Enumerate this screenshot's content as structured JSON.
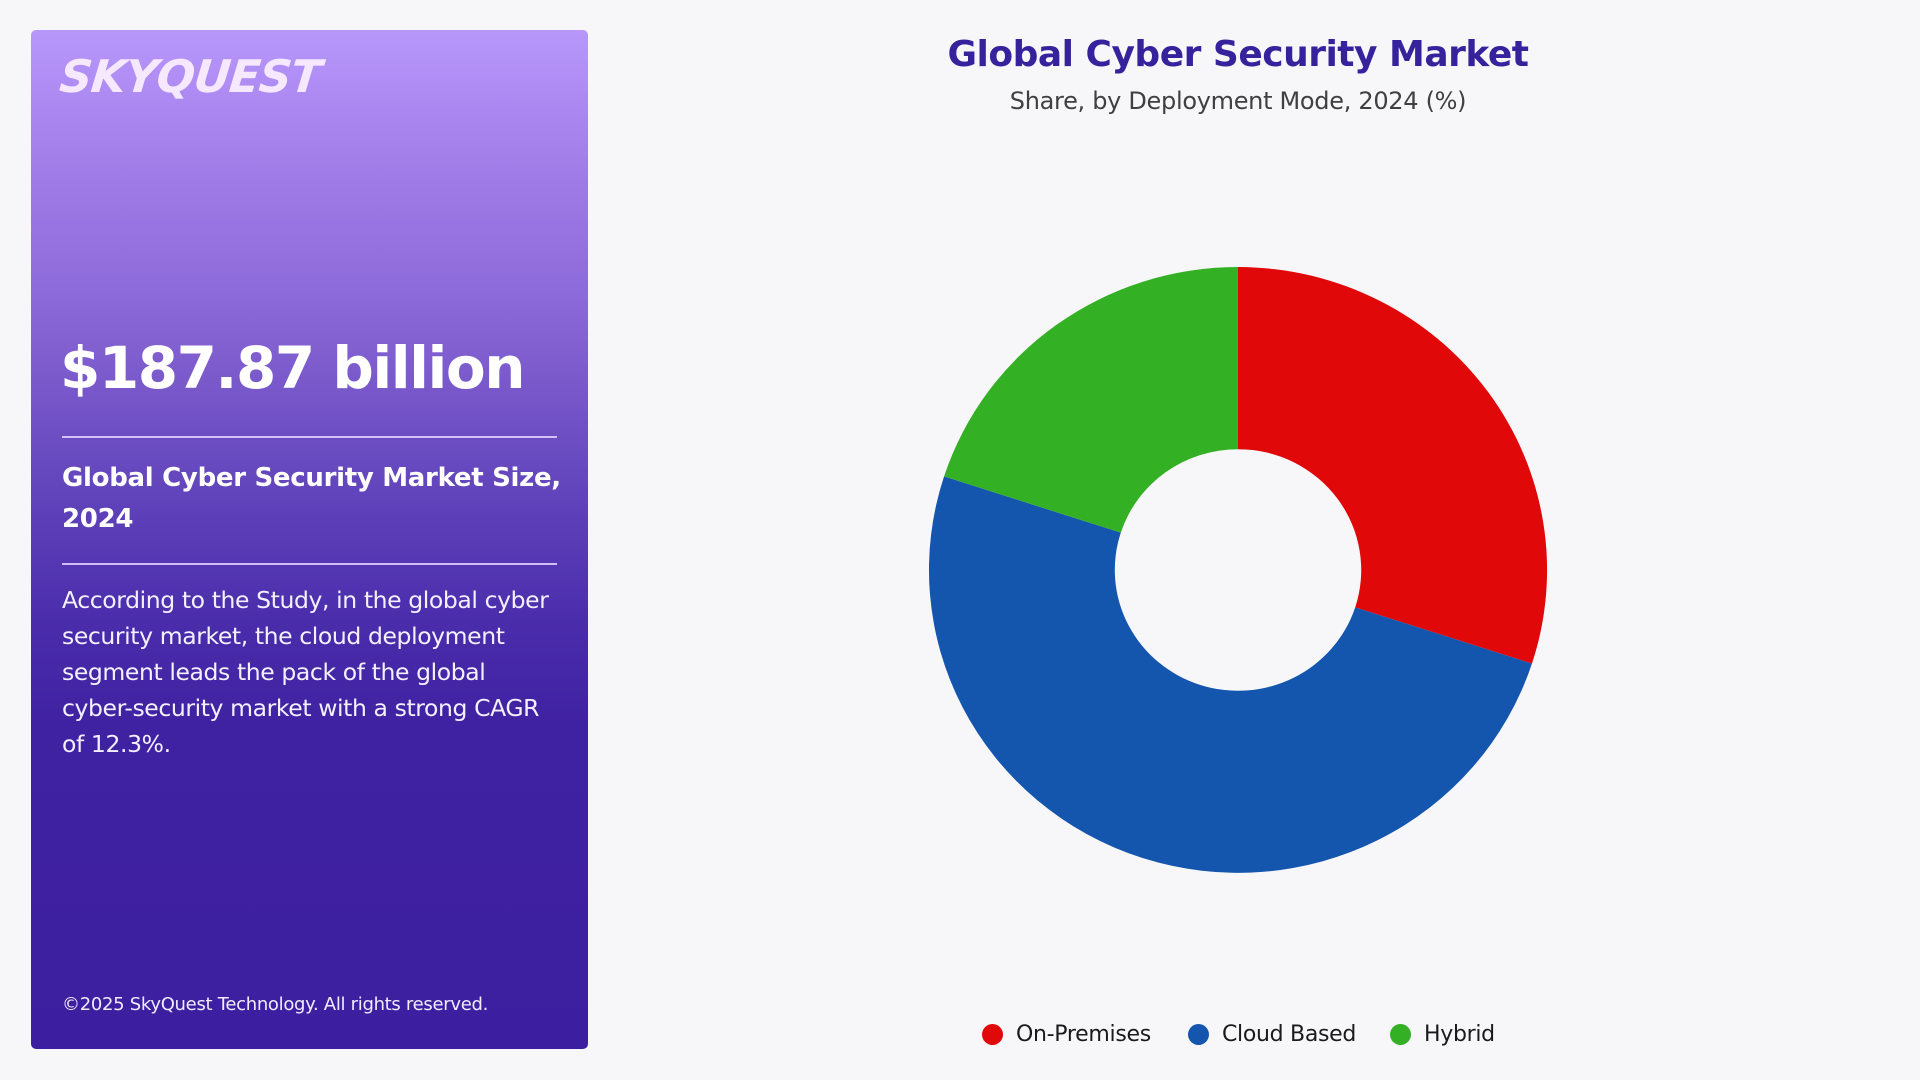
{
  "brand": {
    "logo_text": "SKYQUEST"
  },
  "panel": {
    "market_value": "$187.87 billion",
    "heading": "Global Cyber Security Market Size, 2024",
    "description": "According to the Study, in the global cyber security market, the cloud deployment segment leads the pack of the global cyber-security market with a strong CAGR of 12.3%.",
    "footer": "©2025 SkyQuest Technology. All rights reserved."
  },
  "chart_data": {
    "type": "pie",
    "variant": "donut",
    "title": "Global Cyber Security Market",
    "subtitle": "Share, by Deployment Mode, 2024 (%)",
    "categories": [
      "On-Premises",
      "Cloud Based",
      "Hybrid"
    ],
    "values": [
      30,
      50,
      20
    ],
    "colors": [
      "#e00808",
      "#1455ae",
      "#34b024"
    ],
    "start_angle_deg": 0,
    "direction": "clockwise",
    "legend_position": "bottom",
    "data_labels": false
  },
  "colors": {
    "title": "#36229c",
    "panel_gradient_top": "#b897fb",
    "panel_gradient_bottom": "#3c1fa0",
    "background": "#f7f7fa"
  }
}
